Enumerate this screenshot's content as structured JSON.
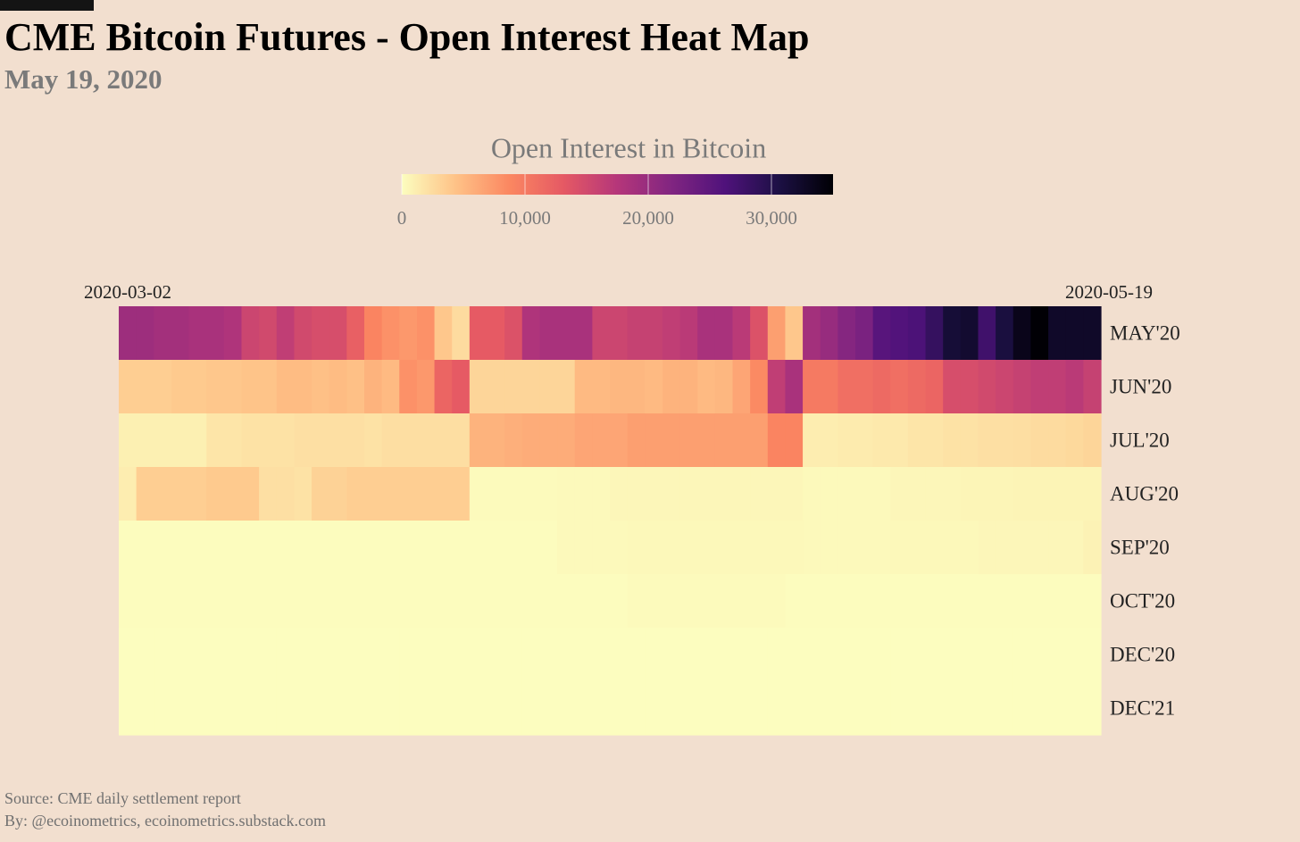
{
  "chart_data": {
    "type": "heatmap",
    "title": "CME Bitcoin Futures - Open Interest Heat Map",
    "subtitle": "May 19, 2020",
    "colorbar_title": "Open Interest in Bitcoin",
    "source": "Source: CME daily settlement report",
    "byline": "By: @ecoinometrics, ecoinometrics.substack.com",
    "zlim": [
      0,
      35000
    ],
    "zticks": [
      0,
      {
        "value": 10000,
        "label": "10,000"
      },
      {
        "value": 20000,
        "label": "20,000"
      },
      {
        "value": 30000,
        "label": "30,000"
      }
    ],
    "colorscale": [
      "#fcfdbf",
      "#fec287",
      "#fb8761",
      "#e55964",
      "#b5367a",
      "#812581",
      "#4f127b",
      "#1c1044",
      "#000004"
    ],
    "x": [
      "2020-03-02",
      null,
      null,
      null,
      null,
      null,
      null,
      null,
      null,
      null,
      null,
      null,
      null,
      null,
      null,
      null,
      null,
      null,
      null,
      null,
      null,
      null,
      null,
      null,
      null,
      null,
      null,
      null,
      null,
      null,
      null,
      null,
      null,
      null,
      null,
      null,
      null,
      null,
      null,
      null,
      null,
      null,
      null,
      null,
      null,
      null,
      null,
      null,
      null,
      null,
      null,
      null,
      null,
      null,
      null,
      "2020-05-19"
    ],
    "y": [
      "MAY'20",
      "JUN'20",
      "JUL'20",
      "AUG'20",
      "SEP'20",
      "OCT'20",
      "DEC'20",
      "DEC'21"
    ],
    "z": [
      [
        19500,
        19500,
        19000,
        19000,
        18500,
        18500,
        18000,
        15500,
        15000,
        16500,
        15000,
        14500,
        14500,
        12500,
        9000,
        8000,
        7500,
        8000,
        4000,
        2500,
        13000,
        13000,
        14000,
        18000,
        18500,
        18500,
        18500,
        15500,
        15500,
        16000,
        16000,
        16500,
        17000,
        18500,
        18500,
        17000,
        14000,
        7000,
        4000,
        19000,
        20000,
        21500,
        22500,
        25500,
        26000,
        26500,
        28500,
        31500,
        32000,
        27500,
        31000,
        33500,
        34900,
        32500,
        32500,
        32500
      ],
      [
        3500,
        3500,
        3500,
        3800,
        3800,
        4000,
        4000,
        4200,
        4200,
        4800,
        4800,
        4500,
        4800,
        4500,
        5500,
        5000,
        8000,
        7500,
        12000,
        13000,
        3000,
        3000,
        3000,
        3000,
        3000,
        3000,
        5000,
        5000,
        5200,
        5200,
        5000,
        5500,
        5500,
        5000,
        5200,
        6500,
        8500,
        16500,
        18500,
        10000,
        10000,
        11000,
        11000,
        11500,
        11000,
        11500,
        12000,
        14500,
        14500,
        15000,
        15500,
        16000,
        16500,
        16500,
        17000,
        16000
      ],
      [
        1000,
        1000,
        1000,
        1000,
        1000,
        1800,
        1800,
        2000,
        2000,
        2000,
        2200,
        2200,
        2200,
        2200,
        2000,
        2300,
        2300,
        2300,
        2300,
        2300,
        5500,
        5500,
        5800,
        6000,
        6000,
        6000,
        6500,
        6500,
        6500,
        7000,
        7000,
        7000,
        7000,
        7000,
        7000,
        7000,
        7000,
        9000,
        9000,
        1200,
        1200,
        1300,
        1300,
        1500,
        1500,
        1800,
        1800,
        2000,
        2000,
        2200,
        2200,
        2300,
        2500,
        2500,
        2700,
        3000
      ],
      [
        1200,
        3500,
        3500,
        3500,
        3500,
        3800,
        3800,
        3800,
        2200,
        2200,
        2000,
        3200,
        3200,
        3500,
        3500,
        3500,
        3500,
        3500,
        3500,
        3500,
        200,
        200,
        200,
        200,
        200,
        300,
        300,
        300,
        500,
        500,
        500,
        500,
        500,
        500,
        500,
        500,
        500,
        500,
        500,
        300,
        300,
        300,
        300,
        300,
        500,
        500,
        500,
        500,
        600,
        600,
        600,
        700,
        700,
        700,
        700,
        700
      ],
      [
        100,
        100,
        100,
        100,
        100,
        100,
        100,
        100,
        100,
        100,
        100,
        100,
        100,
        100,
        100,
        100,
        100,
        100,
        100,
        100,
        100,
        100,
        100,
        100,
        100,
        300,
        300,
        300,
        300,
        400,
        400,
        400,
        400,
        400,
        400,
        400,
        400,
        400,
        400,
        300,
        300,
        300,
        300,
        300,
        400,
        400,
        400,
        400,
        400,
        500,
        500,
        500,
        500,
        500,
        500,
        800
      ],
      [
        50,
        50,
        50,
        50,
        50,
        50,
        50,
        50,
        50,
        50,
        50,
        50,
        50,
        50,
        50,
        50,
        50,
        50,
        50,
        50,
        50,
        50,
        50,
        50,
        50,
        50,
        50,
        50,
        50,
        250,
        250,
        250,
        250,
        250,
        250,
        250,
        250,
        250,
        50,
        50,
        50,
        50,
        50,
        50,
        50,
        50,
        50,
        50,
        50,
        50,
        50,
        50,
        50,
        50,
        50,
        50
      ],
      [
        30,
        30,
        30,
        30,
        30,
        30,
        30,
        30,
        30,
        30,
        30,
        30,
        30,
        30,
        30,
        30,
        30,
        30,
        30,
        30,
        30,
        30,
        30,
        30,
        30,
        30,
        30,
        30,
        30,
        30,
        30,
        30,
        30,
        30,
        30,
        30,
        30,
        30,
        30,
        30,
        30,
        30,
        30,
        30,
        30,
        30,
        30,
        30,
        30,
        30,
        30,
        30,
        30,
        30,
        30,
        30
      ],
      [
        0,
        0,
        0,
        0,
        0,
        0,
        0,
        0,
        0,
        0,
        0,
        0,
        0,
        0,
        0,
        0,
        0,
        0,
        0,
        0,
        0,
        0,
        0,
        0,
        0,
        0,
        0,
        0,
        0,
        0,
        0,
        0,
        0,
        0,
        0,
        0,
        0,
        0,
        0,
        0,
        0,
        0,
        0,
        0,
        0,
        0,
        0,
        0,
        0,
        0,
        0,
        0,
        0,
        0,
        0,
        0
      ]
    ]
  }
}
